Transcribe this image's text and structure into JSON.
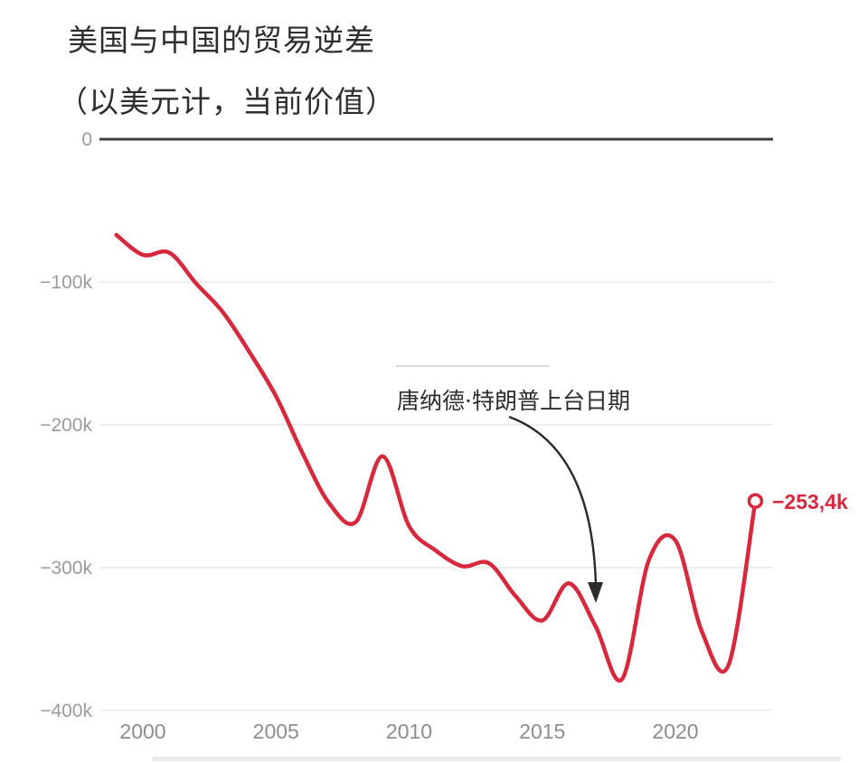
{
  "chart_data": {
    "type": "line",
    "title": "美国与中国的贸易逆差",
    "subtitle": "（以美元计，当前价值）",
    "xlabel": "",
    "ylabel": "",
    "grid": true,
    "legend_position": "none",
    "xlim": [
      1999,
      2023.7
    ],
    "ylim": [
      -420,
      0
    ],
    "x_ticks": [
      2000,
      2005,
      2010,
      2015,
      2020
    ],
    "y_ticks": [
      {
        "value": 0,
        "label": "0"
      },
      {
        "value": -100,
        "label": "−100k"
      },
      {
        "value": -200,
        "label": "−200k"
      },
      {
        "value": -300,
        "label": "−300k"
      },
      {
        "value": -400,
        "label": "−400k"
      }
    ],
    "series": [
      {
        "name": "美国与中国的贸易逆差",
        "color": "#d7293d",
        "points": [
          [
            1999,
            -67
          ],
          [
            2000,
            -81
          ],
          [
            2001,
            -79.5
          ],
          [
            2002,
            -101
          ],
          [
            2003,
            -121
          ],
          [
            2004,
            -149
          ],
          [
            2005,
            -180
          ],
          [
            2006,
            -220
          ],
          [
            2007,
            -255
          ],
          [
            2008,
            -268
          ],
          [
            2009,
            -222
          ],
          [
            2010,
            -271
          ],
          [
            2011,
            -288
          ],
          [
            2012,
            -299
          ],
          [
            2013,
            -297
          ],
          [
            2014,
            -320
          ],
          [
            2015,
            -337
          ],
          [
            2016,
            -311
          ],
          [
            2017,
            -341
          ],
          [
            2018,
            -378
          ],
          [
            2019,
            -295
          ],
          [
            2020,
            -281
          ],
          [
            2021,
            -345
          ],
          [
            2022,
            -368
          ],
          [
            2023,
            -253.4
          ]
        ]
      }
    ],
    "annotation": {
      "text": "唐纳德·特朗普上台日期",
      "points_to_year": 2017
    },
    "end_point": [
      2023,
      -253.4
    ],
    "end_point_label": "−253,4k"
  }
}
